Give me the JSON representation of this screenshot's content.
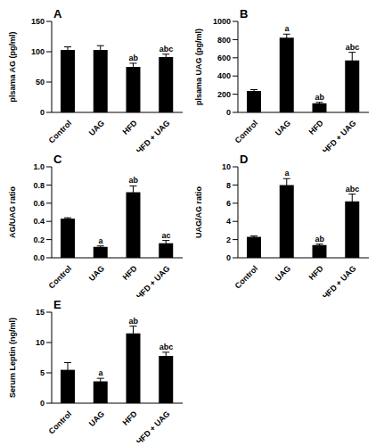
{
  "chart_data": [
    {
      "type": "bar",
      "title": "A",
      "ylabel": "plsama AG (pg/ml)",
      "categories": [
        "Control",
        "UAG",
        "HFD",
        "HFD + UAG"
      ],
      "values": [
        103,
        103,
        75,
        91
      ],
      "errors": [
        5,
        7,
        6,
        5
      ],
      "annotations": [
        null,
        null,
        "ab",
        "abc"
      ],
      "color": "#000000",
      "ylim": [
        0,
        150
      ],
      "yticks": [
        0,
        50,
        100,
        150
      ]
    },
    {
      "type": "bar",
      "title": "B",
      "ylabel": "plsama UAG (pg/ml)",
      "categories": [
        "Control",
        "UAG",
        "HFD",
        "HFD + UAG"
      ],
      "values": [
        235,
        820,
        100,
        570
      ],
      "errors": [
        15,
        40,
        10,
        90
      ],
      "annotations": [
        null,
        "a",
        "ab",
        "abc"
      ],
      "color": "#000000",
      "ylim": [
        0,
        1000
      ],
      "yticks": [
        0,
        200,
        400,
        600,
        800,
        1000
      ]
    },
    {
      "type": "bar",
      "title": "C",
      "ylabel": "AG/UAG ratio",
      "categories": [
        "Control",
        "UAG",
        "HFD",
        "HFD + UAG"
      ],
      "values": [
        0.43,
        0.12,
        0.72,
        0.16
      ],
      "errors": [
        0.01,
        0.01,
        0.07,
        0.03
      ],
      "annotations": [
        null,
        "a",
        "ab",
        "ac"
      ],
      "color": "#000000",
      "ylim": [
        0,
        1
      ],
      "yticks": [
        {
          "value": 0,
          "label": "0.0"
        },
        {
          "value": 0.2,
          "label": "0.2"
        },
        {
          "value": 0.4,
          "label": "0.4"
        },
        {
          "value": 0.6,
          "label": "0.6"
        },
        {
          "value": 0.8,
          "label": "0.8"
        },
        {
          "value": 1,
          "label": "1.0"
        }
      ]
    },
    {
      "type": "bar",
      "title": "D",
      "ylabel": "UAG/AG ratio",
      "categories": [
        "Control",
        "UAG",
        "HFD",
        "HFD + UAG"
      ],
      "values": [
        2.3,
        8.0,
        1.4,
        6.2
      ],
      "errors": [
        0.1,
        0.7,
        0.1,
        0.8
      ],
      "annotations": [
        null,
        "a",
        "ab",
        "abc"
      ],
      "color": "#000000",
      "ylim": [
        0,
        10
      ],
      "yticks": [
        0,
        2,
        4,
        6,
        8,
        10
      ]
    },
    {
      "type": "bar",
      "title": "E",
      "ylabel": "Serum Leptin (ng/ml)",
      "categories": [
        "Control",
        "UAG",
        "HFD",
        "HFD + UAG"
      ],
      "values": [
        5.5,
        3.6,
        11.5,
        7.8
      ],
      "errors": [
        1.2,
        0.5,
        1.2,
        0.6
      ],
      "annotations": [
        null,
        "a",
        "ab",
        "abc"
      ],
      "color": "#000000",
      "ylim": [
        0,
        15
      ],
      "yticks": [
        0,
        5,
        10,
        15
      ]
    }
  ]
}
